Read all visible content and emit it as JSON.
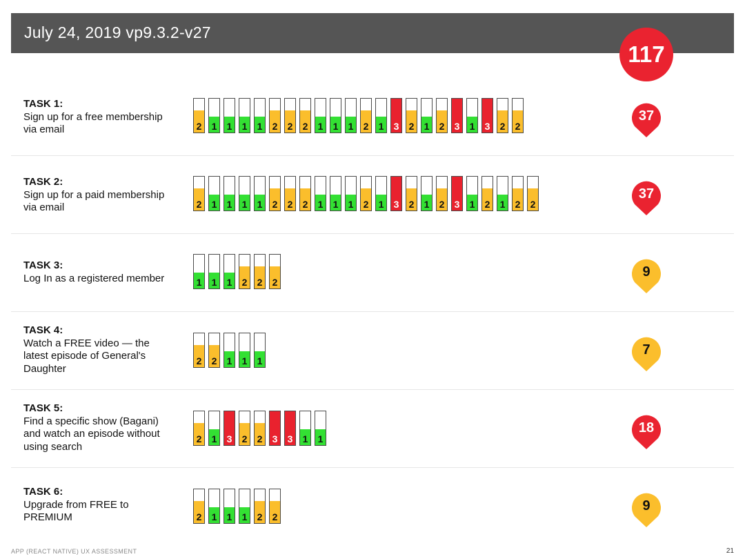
{
  "header": {
    "title": "July 24, 2019 vp9.3.2-v27"
  },
  "total_score": "117",
  "colors": {
    "level_1": "#33e033",
    "level_2": "#fbbe2c",
    "level_3": "#e9222e",
    "pin_red": "#ea2330",
    "pin_yellow": "#fbbe2c"
  },
  "chart_data": {
    "type": "bar",
    "tasks": [
      {
        "label": "TASK 1:",
        "desc": "Sign up for a free membership\nvia email",
        "scores": [
          2,
          1,
          1,
          1,
          1,
          2,
          2,
          2,
          1,
          1,
          1,
          2,
          1,
          3,
          2,
          1,
          2,
          3,
          1,
          3,
          2,
          2
        ],
        "total": "37",
        "pin_color": "red"
      },
      {
        "label": "TASK 2:",
        "desc": "Sign up for a paid membership\nvia email",
        "scores": [
          2,
          1,
          1,
          1,
          1,
          2,
          2,
          2,
          1,
          1,
          1,
          2,
          1,
          3,
          2,
          1,
          2,
          3,
          1,
          2,
          1,
          2,
          2
        ],
        "total": "37",
        "pin_color": "red"
      },
      {
        "label": "TASK 3:",
        "desc": "Log In as a registered member",
        "scores": [
          1,
          1,
          1,
          2,
          2,
          2
        ],
        "total": "9",
        "pin_color": "yellow"
      },
      {
        "label": "TASK 4:",
        "desc": "Watch a FREE video — the\nlatest episode of General's\nDaughter",
        "scores": [
          2,
          2,
          1,
          1,
          1
        ],
        "total": "7",
        "pin_color": "yellow"
      },
      {
        "label": "TASK 5:",
        "desc": "Find a specific show (Bagani)\nand watch an episode without\nusing search",
        "scores": [
          2,
          1,
          3,
          2,
          2,
          3,
          3,
          1,
          1
        ],
        "total": "18",
        "pin_color": "red"
      },
      {
        "label": "TASK 6:",
        "desc": "Upgrade from FREE to\nPREMIUM",
        "scores": [
          2,
          1,
          1,
          1,
          2,
          2
        ],
        "total": "9",
        "pin_color": "yellow"
      }
    ]
  },
  "footer": {
    "left": "APP (REACT NATIVE) UX ASSESSMENT",
    "page": "21"
  }
}
